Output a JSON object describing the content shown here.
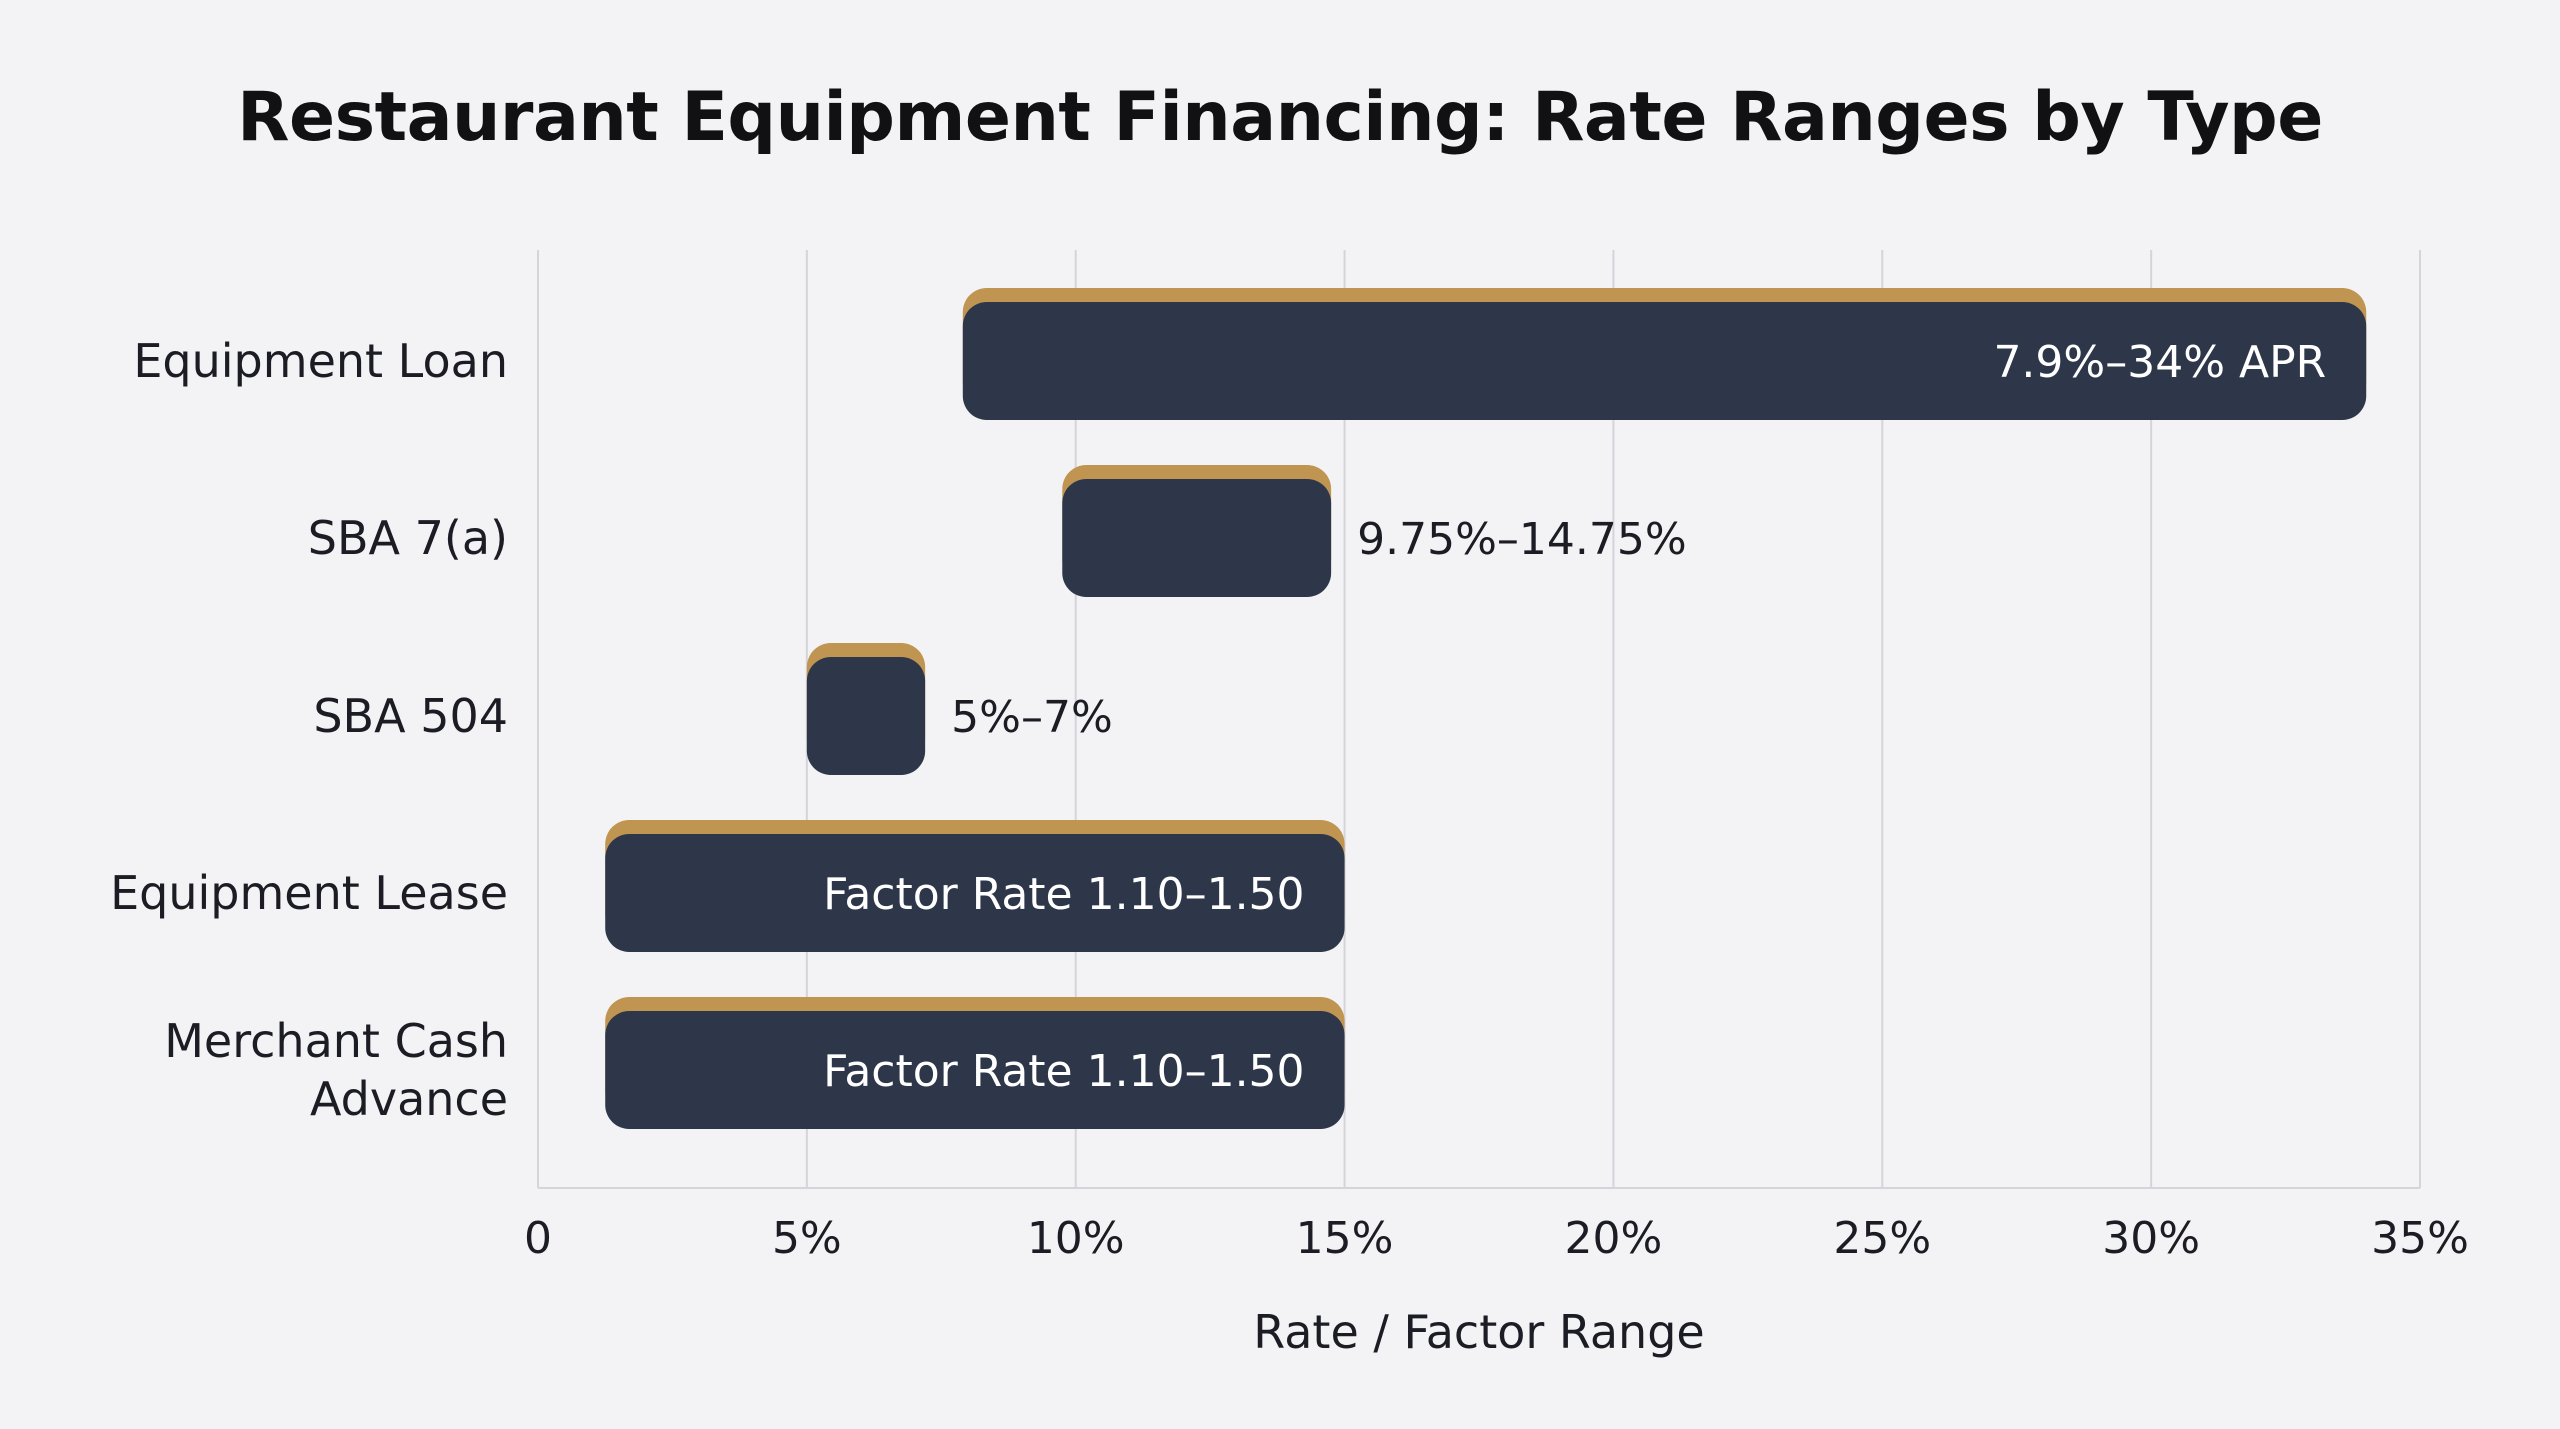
{
  "chart_data": {
    "type": "bar",
    "orientation": "horizontal",
    "title": "Restaurant Equipment Financing: Rate Ranges by Type",
    "xlabel": "Rate / Factor Range",
    "ylabel": "",
    "xlim": [
      0,
      35
    ],
    "x_ticks": [
      0,
      5,
      10,
      15,
      20,
      25,
      30,
      35
    ],
    "x_tick_labels": [
      "0",
      "5%",
      "10%",
      "15%",
      "20%",
      "25%",
      "30%",
      "35%"
    ],
    "grid": "vertical",
    "categories": [
      {
        "name": "Equipment Loan",
        "lines": [
          "Equipment Loan"
        ],
        "start": 7.9,
        "end": 34,
        "label": "7.9%–34% APR",
        "label_position": "inside"
      },
      {
        "name": "SBA 7(a)",
        "lines": [
          "SBA 7(a)"
        ],
        "start": 9.75,
        "end": 14.75,
        "label": "9.75%–14.75%",
        "label_position": "outside"
      },
      {
        "name": "SBA 504",
        "lines": [
          "SBA 504"
        ],
        "start": 5,
        "end": 7.2,
        "label": "5%–7%",
        "label_position": "outside"
      },
      {
        "name": "Equipment Lease",
        "lines": [
          "Equipment Lease"
        ],
        "start": 1.25,
        "end": 15,
        "label": "Factor Rate 1.10–1.50",
        "label_position": "inside"
      },
      {
        "name": "Merchant Cash Advance",
        "lines": [
          "Merchant Cash",
          "Advance"
        ],
        "start": 1.25,
        "end": 15,
        "label": "Factor Rate 1.10–1.50",
        "label_position": "inside"
      }
    ]
  },
  "colors": {
    "bar": "#2e374a",
    "bar_accent": "#bf9551",
    "grid": "#d4d4da",
    "background": "#f3f3f6",
    "text": "#1c1c24"
  }
}
